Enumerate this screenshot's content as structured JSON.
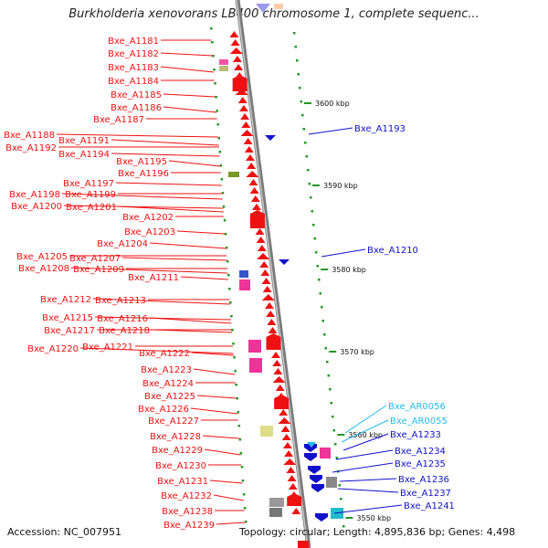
{
  "title": "Burkholderia xenovorans LB400 chromosome 1, complete sequenc...",
  "footer": {
    "accession": "Accession: NC_007951",
    "summary": "Topology: circular; Length: 4,895,836 bp; Genes: 4,498"
  },
  "colors": {
    "forward_gene": "#ee1111",
    "reverse_gene": "#1111cc",
    "rna_label": "#22bbee",
    "backbone": "#999999",
    "tick": "#229922"
  },
  "kbp_ticks": [
    "3600 kbp",
    "3590 kbp",
    "3580 kbp",
    "3570 kbp",
    "3560 kbp",
    "3550 kbp"
  ],
  "left_labels": [
    "Bxe_A1181",
    "Bxe_A1182",
    "Bxe_A1183",
    "Bxe_A1184",
    "Bxe_A1185",
    "Bxe_A1186",
    "Bxe_A1187",
    "Bxe_A1188",
    "Bxe_A1191",
    "Bxe_A1192",
    "Bxe_A1194",
    "Bxe_A1195",
    "Bxe_A1196",
    "Bxe_A1197",
    "Bxe_A1198",
    "Bxe_A1199",
    "Bxe_A1200",
    "Bxe_A1201",
    "Bxe_A1202",
    "Bxe_A1203",
    "Bxe_A1204",
    "Bxe_A1205",
    "Bxe_A1207",
    "Bxe_A1208",
    "Bxe_A1209",
    "Bxe_A1211",
    "Bxe_A1212",
    "Bxe_A1213",
    "Bxe_A1215",
    "Bxe_A1216",
    "Bxe_A1217",
    "Bxe_A1218",
    "Bxe_A1220",
    "Bxe_A1221",
    "Bxe_A1222",
    "Bxe_A1223",
    "Bxe_A1224",
    "Bxe_A1225",
    "Bxe_A1226",
    "Bxe_A1227",
    "Bxe_A1228",
    "Bxe_A1229",
    "Bxe_A1230",
    "Bxe_A1231",
    "Bxe_A1232",
    "Bxe_A1238",
    "Bxe_A1239"
  ],
  "right_labels": [
    "Bxe_A1193",
    "Bxe_A1210",
    "Bxe_AR0056",
    "Bxe_AR0055",
    "Bxe_A1233",
    "Bxe_A1234",
    "Bxe_A1235",
    "Bxe_A1236",
    "Bxe_A1237",
    "Bxe_A1241"
  ],
  "rna_labels": [
    "Bxe_AR0056",
    "Bxe_AR0055"
  ]
}
